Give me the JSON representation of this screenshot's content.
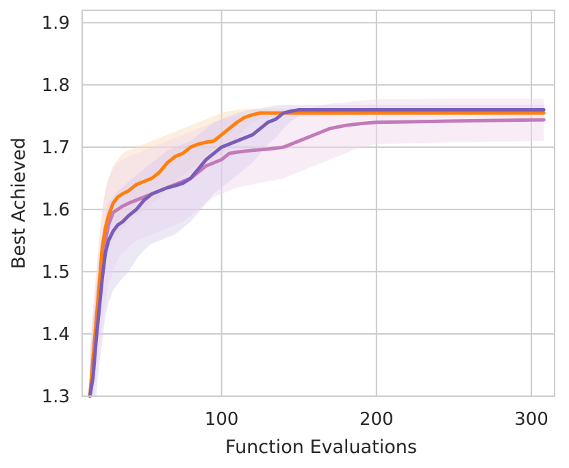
{
  "chart_data": {
    "type": "line",
    "title": "",
    "xlabel": "Function Evaluations",
    "ylabel": "Best Achieved",
    "xlim": [
      10,
      315
    ],
    "ylim": [
      1.3,
      1.92
    ],
    "xticks": [
      100,
      200,
      300
    ],
    "xtick_labels": [
      "100",
      "200",
      "300"
    ],
    "yticks": [
      1.3,
      1.4,
      1.5,
      1.6,
      1.7,
      1.8,
      1.9
    ],
    "ytick_labels": [
      "1.3",
      "1.4",
      "1.5",
      "1.6",
      "1.7",
      "1.8",
      "1.9"
    ],
    "grid": true,
    "legend": "none",
    "series": [
      {
        "name": "orange",
        "color": "#ff7f0e",
        "band_color": "#fdd9b5",
        "x": [
          15,
          17,
          19,
          21,
          23,
          25,
          27,
          30,
          33,
          36,
          40,
          45,
          50,
          55,
          60,
          65,
          70,
          75,
          80,
          85,
          90,
          95,
          100,
          105,
          110,
          115,
          120,
          125,
          130,
          140,
          150,
          200,
          250,
          308
        ],
        "y": [
          1.3,
          1.36,
          1.42,
          1.48,
          1.54,
          1.57,
          1.59,
          1.61,
          1.62,
          1.625,
          1.63,
          1.64,
          1.645,
          1.65,
          1.66,
          1.675,
          1.685,
          1.69,
          1.7,
          1.705,
          1.708,
          1.71,
          1.72,
          1.73,
          1.74,
          1.748,
          1.752,
          1.755,
          1.755,
          1.755,
          1.755,
          1.755,
          1.755,
          1.755
        ],
        "lower": [
          1.22,
          1.29,
          1.35,
          1.41,
          1.46,
          1.5,
          1.53,
          1.55,
          1.56,
          1.57,
          1.58,
          1.59,
          1.6,
          1.61,
          1.62,
          1.635,
          1.645,
          1.655,
          1.665,
          1.67,
          1.675,
          1.68,
          1.69,
          1.7,
          1.715,
          1.73,
          1.74,
          1.745,
          1.748,
          1.75,
          1.75,
          1.75,
          1.75,
          1.75
        ],
        "upper": [
          1.36,
          1.43,
          1.49,
          1.55,
          1.6,
          1.63,
          1.65,
          1.67,
          1.68,
          1.69,
          1.695,
          1.7,
          1.705,
          1.71,
          1.715,
          1.72,
          1.725,
          1.73,
          1.735,
          1.74,
          1.745,
          1.75,
          1.755,
          1.758,
          1.76,
          1.762,
          1.762,
          1.762,
          1.762,
          1.762,
          1.762,
          1.762,
          1.762,
          1.762
        ]
      },
      {
        "name": "pink",
        "color": "#c27ab8",
        "band_color": "#f0d6ee",
        "x": [
          15,
          17,
          19,
          21,
          23,
          25,
          27,
          30,
          33,
          36,
          40,
          45,
          50,
          55,
          60,
          65,
          70,
          75,
          80,
          85,
          90,
          95,
          100,
          105,
          110,
          120,
          130,
          140,
          150,
          160,
          170,
          180,
          190,
          200,
          250,
          308
        ],
        "y": [
          1.3,
          1.36,
          1.42,
          1.47,
          1.52,
          1.55,
          1.575,
          1.595,
          1.6,
          1.605,
          1.61,
          1.615,
          1.62,
          1.625,
          1.63,
          1.635,
          1.64,
          1.645,
          1.65,
          1.66,
          1.67,
          1.675,
          1.68,
          1.69,
          1.692,
          1.695,
          1.697,
          1.7,
          1.71,
          1.72,
          1.73,
          1.735,
          1.738,
          1.74,
          1.742,
          1.744
        ],
        "lower": [
          1.2,
          1.27,
          1.33,
          1.38,
          1.42,
          1.45,
          1.48,
          1.5,
          1.52,
          1.53,
          1.54,
          1.55,
          1.555,
          1.56,
          1.565,
          1.57,
          1.575,
          1.58,
          1.59,
          1.6,
          1.61,
          1.62,
          1.625,
          1.63,
          1.635,
          1.64,
          1.645,
          1.65,
          1.66,
          1.67,
          1.68,
          1.69,
          1.7,
          1.705,
          1.708,
          1.71
        ],
        "upper": [
          1.38,
          1.44,
          1.5,
          1.55,
          1.6,
          1.63,
          1.65,
          1.665,
          1.675,
          1.68,
          1.685,
          1.69,
          1.695,
          1.7,
          1.705,
          1.71,
          1.715,
          1.72,
          1.725,
          1.73,
          1.735,
          1.74,
          1.745,
          1.748,
          1.75,
          1.752,
          1.755,
          1.758,
          1.76,
          1.765,
          1.77,
          1.772,
          1.775,
          1.777,
          1.778,
          1.778
        ]
      },
      {
        "name": "purple",
        "color": "#7a5cb8",
        "band_color": "#d8ccec",
        "x": [
          15,
          17,
          19,
          21,
          23,
          25,
          27,
          30,
          33,
          36,
          40,
          45,
          50,
          55,
          60,
          65,
          70,
          75,
          80,
          85,
          90,
          95,
          100,
          105,
          110,
          115,
          120,
          125,
          130,
          135,
          140,
          145,
          150,
          200,
          250,
          308
        ],
        "y": [
          1.28,
          1.33,
          1.39,
          1.44,
          1.49,
          1.53,
          1.55,
          1.565,
          1.575,
          1.58,
          1.59,
          1.6,
          1.615,
          1.625,
          1.63,
          1.635,
          1.638,
          1.642,
          1.65,
          1.665,
          1.68,
          1.69,
          1.7,
          1.705,
          1.71,
          1.715,
          1.72,
          1.73,
          1.74,
          1.745,
          1.755,
          1.758,
          1.76,
          1.76,
          1.76,
          1.76
        ],
        "lower": [
          1.18,
          1.24,
          1.3,
          1.35,
          1.39,
          1.43,
          1.45,
          1.47,
          1.48,
          1.49,
          1.5,
          1.52,
          1.535,
          1.545,
          1.55,
          1.555,
          1.56,
          1.57,
          1.58,
          1.595,
          1.61,
          1.625,
          1.635,
          1.645,
          1.655,
          1.665,
          1.675,
          1.69,
          1.705,
          1.715,
          1.73,
          1.742,
          1.75,
          1.752,
          1.752,
          1.752
        ],
        "upper": [
          1.36,
          1.42,
          1.47,
          1.52,
          1.56,
          1.59,
          1.61,
          1.62,
          1.63,
          1.635,
          1.645,
          1.655,
          1.665,
          1.675,
          1.685,
          1.695,
          1.7,
          1.705,
          1.71,
          1.72,
          1.73,
          1.74,
          1.745,
          1.75,
          1.755,
          1.758,
          1.76,
          1.762,
          1.765,
          1.767,
          1.768,
          1.768,
          1.768,
          1.768,
          1.768,
          1.768
        ]
      }
    ]
  }
}
